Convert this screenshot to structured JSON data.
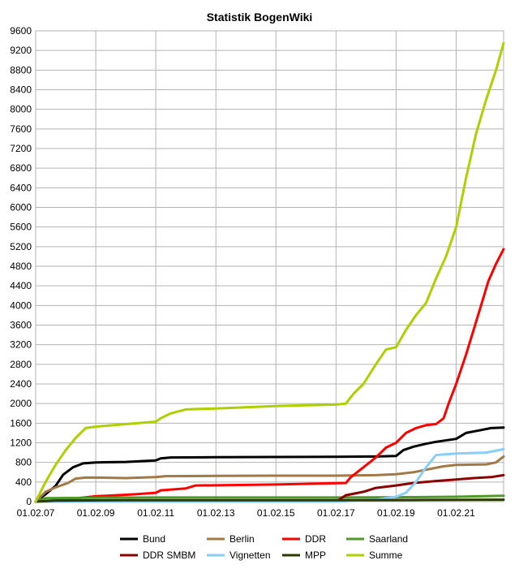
{
  "chart_data": {
    "type": "line",
    "title": "Statistik BogenWiki",
    "xlabel": "",
    "ylabel": "",
    "x_range": [
      "2007-02-01",
      "2022-09-01"
    ],
    "ylim": [
      0,
      9600
    ],
    "y_ticks": [
      0,
      400,
      800,
      1200,
      1600,
      2000,
      2400,
      2800,
      3200,
      3600,
      4000,
      4400,
      4800,
      5200,
      5600,
      6000,
      6400,
      6800,
      7200,
      7600,
      8000,
      8400,
      8800,
      9200,
      9600
    ],
    "y_tick_labels": [
      "0",
      "400",
      "800",
      "1200",
      "1600",
      "2000",
      "2400",
      "2800",
      "3200",
      "3600",
      "4000",
      "4400",
      "4800",
      "5200",
      "5600",
      "6000",
      "6400",
      "6800",
      "7200",
      "7600",
      "8000",
      "8400",
      "8800",
      "9200",
      "9600"
    ],
    "x_ticks": [
      "2007-02-01",
      "2009-02-01",
      "2011-02-01",
      "2013-02-01",
      "2015-02-01",
      "2017-02-01",
      "2019-02-01",
      "2021-02-01"
    ],
    "x_tick_labels": [
      "01.02.07",
      "01.02.09",
      "01.02.11",
      "01.02.13",
      "01.02.15",
      "01.02.17",
      "01.02.19",
      "01.02.21"
    ],
    "grid": "horizontal-and-vertical",
    "legend_placement": "bottom",
    "series": [
      {
        "name": "Bund",
        "color": "#000000",
        "points": [
          [
            "2007-02-01",
            0
          ],
          [
            "2007-06-01",
            150
          ],
          [
            "2007-10-01",
            320
          ],
          [
            "2008-01-01",
            550
          ],
          [
            "2008-05-01",
            700
          ],
          [
            "2008-09-01",
            780
          ],
          [
            "2009-02-01",
            800
          ],
          [
            "2010-02-01",
            810
          ],
          [
            "2011-02-01",
            840
          ],
          [
            "2011-04-01",
            880
          ],
          [
            "2011-08-01",
            900
          ],
          [
            "2013-02-01",
            905
          ],
          [
            "2015-02-01",
            910
          ],
          [
            "2017-02-01",
            915
          ],
          [
            "2018-06-01",
            920
          ],
          [
            "2019-02-01",
            930
          ],
          [
            "2019-05-01",
            1050
          ],
          [
            "2019-09-01",
            1120
          ],
          [
            "2020-02-01",
            1180
          ],
          [
            "2020-06-01",
            1220
          ],
          [
            "2021-02-01",
            1280
          ],
          [
            "2021-06-01",
            1400
          ],
          [
            "2021-12-01",
            1460
          ],
          [
            "2022-04-01",
            1500
          ],
          [
            "2022-09-01",
            1510
          ]
        ]
      },
      {
        "name": "Berlin",
        "color": "#a27845",
        "points": [
          [
            "2007-02-01",
            0
          ],
          [
            "2007-06-01",
            200
          ],
          [
            "2007-10-01",
            290
          ],
          [
            "2008-03-01",
            380
          ],
          [
            "2008-06-01",
            470
          ],
          [
            "2008-10-01",
            490
          ],
          [
            "2009-02-01",
            490
          ],
          [
            "2010-02-01",
            480
          ],
          [
            "2011-02-01",
            500
          ],
          [
            "2011-06-01",
            520
          ],
          [
            "2013-02-01",
            525
          ],
          [
            "2015-02-01",
            530
          ],
          [
            "2017-02-01",
            530
          ],
          [
            "2018-06-01",
            540
          ],
          [
            "2019-02-01",
            560
          ],
          [
            "2019-09-01",
            600
          ],
          [
            "2020-02-01",
            650
          ],
          [
            "2020-09-01",
            720
          ],
          [
            "2021-02-01",
            750
          ],
          [
            "2022-02-01",
            760
          ],
          [
            "2022-06-01",
            800
          ],
          [
            "2022-09-01",
            920
          ]
        ]
      },
      {
        "name": "DDR",
        "color": "#ff0000",
        "points": [
          [
            "2007-02-01",
            0
          ],
          [
            "2008-01-01",
            40
          ],
          [
            "2009-02-01",
            110
          ],
          [
            "2010-06-01",
            150
          ],
          [
            "2011-02-01",
            180
          ],
          [
            "2011-04-01",
            230
          ],
          [
            "2012-02-01",
            270
          ],
          [
            "2012-06-01",
            330
          ],
          [
            "2015-02-01",
            350
          ],
          [
            "2017-06-01",
            380
          ],
          [
            "2017-08-01",
            500
          ],
          [
            "2018-01-01",
            700
          ],
          [
            "2018-06-01",
            900
          ],
          [
            "2018-10-01",
            1100
          ],
          [
            "2019-02-01",
            1200
          ],
          [
            "2019-06-01",
            1400
          ],
          [
            "2019-10-01",
            1500
          ],
          [
            "2020-02-01",
            1560
          ],
          [
            "2020-06-01",
            1580
          ],
          [
            "2020-09-01",
            1700
          ],
          [
            "2020-11-01",
            2000
          ],
          [
            "2021-02-01",
            2400
          ],
          [
            "2021-06-01",
            3000
          ],
          [
            "2021-09-01",
            3500
          ],
          [
            "2021-12-01",
            4000
          ],
          [
            "2022-03-01",
            4500
          ],
          [
            "2022-06-01",
            4850
          ],
          [
            "2022-09-01",
            5150
          ]
        ]
      },
      {
        "name": "Saarland",
        "color": "#4e9a28",
        "points": [
          [
            "2007-02-01",
            0
          ],
          [
            "2007-06-01",
            70
          ],
          [
            "2009-02-01",
            80
          ],
          [
            "2011-02-01",
            85
          ],
          [
            "2013-02-01",
            85
          ],
          [
            "2015-02-01",
            85
          ],
          [
            "2017-02-01",
            85
          ],
          [
            "2019-02-01",
            90
          ],
          [
            "2021-02-01",
            100
          ],
          [
            "2022-09-01",
            120
          ]
        ]
      },
      {
        "name": "DDR SMBM",
        "color": "#8b0000",
        "points": [
          [
            "2007-02-01",
            0
          ],
          [
            "2015-02-01",
            0
          ],
          [
            "2017-02-01",
            0
          ],
          [
            "2017-06-01",
            130
          ],
          [
            "2018-01-01",
            200
          ],
          [
            "2018-06-01",
            280
          ],
          [
            "2019-02-01",
            330
          ],
          [
            "2019-09-01",
            380
          ],
          [
            "2020-06-01",
            420
          ],
          [
            "2021-02-01",
            450
          ],
          [
            "2021-09-01",
            480
          ],
          [
            "2022-04-01",
            500
          ],
          [
            "2022-09-01",
            540
          ]
        ]
      },
      {
        "name": "Vignetten",
        "color": "#87cefa",
        "points": [
          [
            "2007-02-01",
            0
          ],
          [
            "2017-02-01",
            0
          ],
          [
            "2018-06-01",
            40
          ],
          [
            "2019-02-01",
            100
          ],
          [
            "2019-06-01",
            180
          ],
          [
            "2019-10-01",
            400
          ],
          [
            "2020-02-01",
            700
          ],
          [
            "2020-06-01",
            950
          ],
          [
            "2021-02-01",
            980
          ],
          [
            "2022-02-01",
            1000
          ],
          [
            "2022-09-01",
            1070
          ]
        ]
      },
      {
        "name": "MPP",
        "color": "#2b3b00",
        "points": [
          [
            "2007-02-01",
            0
          ],
          [
            "2007-10-01",
            20
          ],
          [
            "2010-02-01",
            30
          ],
          [
            "2013-02-01",
            30
          ],
          [
            "2017-02-01",
            30
          ],
          [
            "2020-02-01",
            35
          ],
          [
            "2022-09-01",
            40
          ]
        ]
      },
      {
        "name": "Summe",
        "color": "#aecf00",
        "points": [
          [
            "2007-02-01",
            0
          ],
          [
            "2007-06-01",
            400
          ],
          [
            "2007-10-01",
            750
          ],
          [
            "2008-02-01",
            1050
          ],
          [
            "2008-06-01",
            1300
          ],
          [
            "2008-10-01",
            1500
          ],
          [
            "2009-02-01",
            1530
          ],
          [
            "2010-02-01",
            1580
          ],
          [
            "2011-02-01",
            1630
          ],
          [
            "2011-04-01",
            1700
          ],
          [
            "2011-08-01",
            1800
          ],
          [
            "2012-02-01",
            1880
          ],
          [
            "2013-02-01",
            1900
          ],
          [
            "2015-02-01",
            1950
          ],
          [
            "2017-02-01",
            1980
          ],
          [
            "2017-06-01",
            2000
          ],
          [
            "2017-09-01",
            2200
          ],
          [
            "2018-01-01",
            2400
          ],
          [
            "2018-06-01",
            2800
          ],
          [
            "2018-10-01",
            3100
          ],
          [
            "2019-02-01",
            3150
          ],
          [
            "2019-06-01",
            3500
          ],
          [
            "2019-10-01",
            3800
          ],
          [
            "2020-02-01",
            4050
          ],
          [
            "2020-06-01",
            4550
          ],
          [
            "2020-10-01",
            5000
          ],
          [
            "2021-02-01",
            5600
          ],
          [
            "2021-06-01",
            6600
          ],
          [
            "2021-10-01",
            7500
          ],
          [
            "2022-02-01",
            8200
          ],
          [
            "2022-06-01",
            8800
          ],
          [
            "2022-09-01",
            9350
          ]
        ]
      }
    ]
  }
}
